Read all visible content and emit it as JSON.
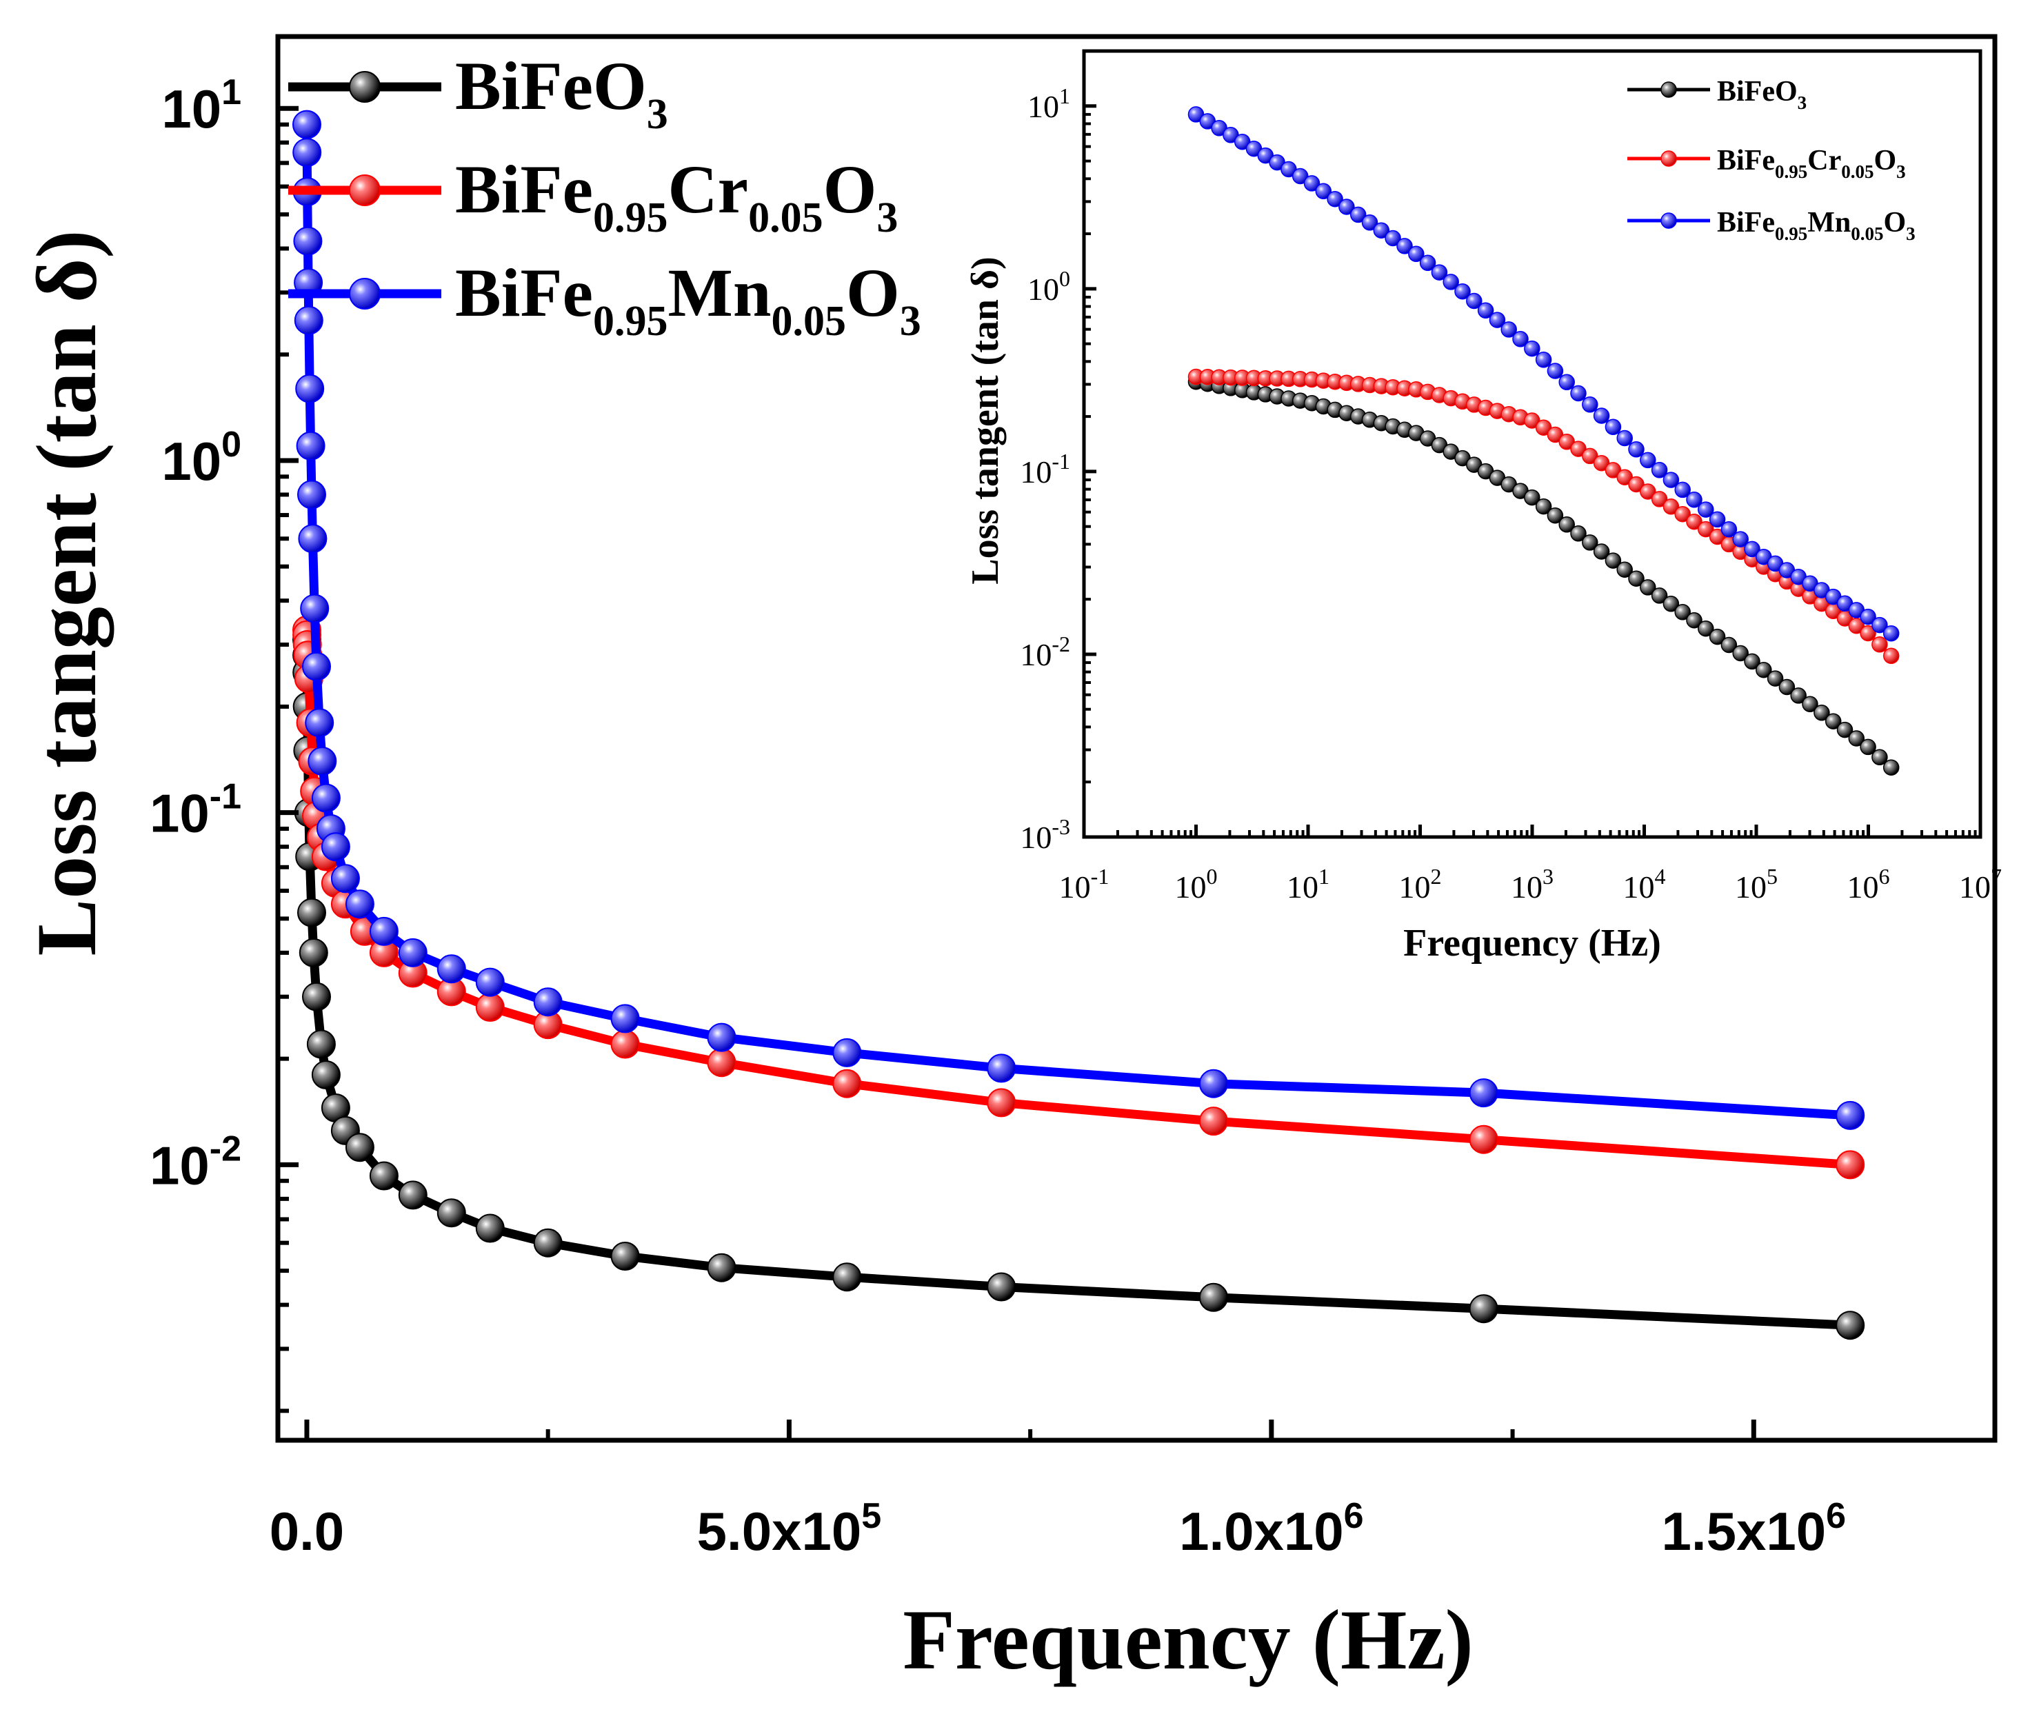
{
  "colors": {
    "BiFeO3": "#000000",
    "BiFe095Cr005O3": "#ff0000",
    "BiFe095Mn005O3": "#0000ff",
    "axis": "#000000",
    "background": "#ffffff"
  },
  "chart_data": [
    {
      "id": "main",
      "type": "line",
      "title": "",
      "xlabel": "Frequency (Hz)",
      "ylabel": "Loss tangent (tan δ)",
      "xscale": "linear",
      "yscale": "log",
      "xlim": [
        -30000,
        1750000
      ],
      "ylim": [
        0.00165,
        16
      ],
      "xticks": [
        {
          "value": 0,
          "label": "0.0"
        },
        {
          "value": 500000,
          "mant": "5.0x10",
          "exp": "5"
        },
        {
          "value": 1000000,
          "mant": "1.0x10",
          "exp": "6"
        },
        {
          "value": 1500000,
          "mant": "1.5x10",
          "exp": "6"
        }
      ],
      "yticks": [
        {
          "value": 0.01,
          "base": "10",
          "exp": "-2"
        },
        {
          "value": 0.1,
          "base": "10",
          "exp": "-1"
        },
        {
          "value": 1,
          "base": "10",
          "exp": "0"
        },
        {
          "value": 10,
          "base": "10",
          "exp": "1"
        }
      ],
      "legend_position": "top-left",
      "grid": false,
      "series": [
        {
          "key": "BiFeO3",
          "name": "BiFeO3",
          "legend": {
            "parts": [
              {
                "t": "BiFeO"
              },
              {
                "t": "3",
                "sub": true
              }
            ]
          },
          "x": [
            1,
            100,
            200,
            500,
            1000,
            2000,
            3000,
            5000,
            7000,
            10000,
            15000,
            20000,
            30000,
            40000,
            55000,
            80000,
            110000,
            150000,
            190000,
            250000,
            330000,
            430000,
            560000,
            720000,
            940000,
            1220000,
            1600000
          ],
          "y": [
            0.31,
            0.28,
            0.25,
            0.2,
            0.15,
            0.1,
            0.075,
            0.052,
            0.04,
            0.03,
            0.022,
            0.018,
            0.0145,
            0.0125,
            0.0112,
            0.0093,
            0.0082,
            0.0073,
            0.0066,
            0.006,
            0.0055,
            0.0051,
            0.0048,
            0.0045,
            0.0042,
            0.0039,
            0.0035
          ]
        },
        {
          "key": "BiFe095Cr005O3",
          "name": "BiFe0.95Cr0.05O3",
          "legend": {
            "parts": [
              {
                "t": "BiFe"
              },
              {
                "t": "0.95",
                "sub": true
              },
              {
                "t": "Cr"
              },
              {
                "t": "0.05",
                "sub": true
              },
              {
                "t": "O"
              },
              {
                "t": "3",
                "sub": true
              }
            ]
          },
          "x": [
            1,
            100,
            500,
            1000,
            2000,
            4000,
            6000,
            8000,
            10000,
            15000,
            20000,
            30000,
            40000,
            60000,
            80000,
            110000,
            150000,
            190000,
            250000,
            330000,
            430000,
            560000,
            720000,
            940000,
            1220000,
            1600000
          ],
          "y": [
            0.33,
            0.32,
            0.3,
            0.28,
            0.24,
            0.18,
            0.14,
            0.115,
            0.098,
            0.085,
            0.075,
            0.063,
            0.055,
            0.046,
            0.04,
            0.035,
            0.031,
            0.028,
            0.025,
            0.022,
            0.0195,
            0.017,
            0.015,
            0.0133,
            0.0118,
            0.01
          ]
        },
        {
          "key": "BiFe095Mn005O3",
          "name": "BiFe0.95Mn0.05O3",
          "legend": {
            "parts": [
              {
                "t": "BiFe"
              },
              {
                "t": "0.95",
                "sub": true
              },
              {
                "t": "Mn"
              },
              {
                "t": "0.05",
                "sub": true
              },
              {
                "t": "O"
              },
              {
                "t": "3",
                "sub": true
              }
            ]
          },
          "x": [
            1,
            200,
            500,
            1000,
            1500,
            2000,
            3000,
            4000,
            5000,
            6000,
            8000,
            10000,
            13000,
            16000,
            20000,
            25000,
            30000,
            40000,
            55000,
            80000,
            110000,
            150000,
            190000,
            250000,
            330000,
            430000,
            560000,
            720000,
            940000,
            1220000,
            1600000
          ],
          "y": [
            9,
            7.5,
            5.8,
            4.2,
            3.2,
            2.5,
            1.6,
            1.1,
            0.8,
            0.6,
            0.38,
            0.26,
            0.18,
            0.14,
            0.11,
            0.09,
            0.08,
            0.065,
            0.055,
            0.046,
            0.04,
            0.036,
            0.033,
            0.029,
            0.026,
            0.023,
            0.0208,
            0.0188,
            0.017,
            0.016,
            0.0138
          ]
        }
      ]
    },
    {
      "id": "inset",
      "type": "line",
      "title": "",
      "xlabel": "Frequency (Hz)",
      "ylabel": "Loss tangent (tan δ)",
      "xscale": "log",
      "yscale": "log",
      "xlim": [
        0.1,
        10000000
      ],
      "ylim": [
        0.001,
        20
      ],
      "xticks": [
        {
          "value": 0.1,
          "base": "10",
          "exp": "-1"
        },
        {
          "value": 1,
          "base": "10",
          "exp": "0"
        },
        {
          "value": 10,
          "base": "10",
          "exp": "1"
        },
        {
          "value": 100,
          "base": "10",
          "exp": "2"
        },
        {
          "value": 1000,
          "base": "10",
          "exp": "3"
        },
        {
          "value": 10000,
          "base": "10",
          "exp": "4"
        },
        {
          "value": 100000,
          "base": "10",
          "exp": "5"
        },
        {
          "value": 1000000,
          "base": "10",
          "exp": "6"
        },
        {
          "value": 10000000,
          "base": "10",
          "exp": "7"
        }
      ],
      "yticks": [
        {
          "value": 0.001,
          "base": "10",
          "exp": "-3"
        },
        {
          "value": 0.01,
          "base": "10",
          "exp": "-2"
        },
        {
          "value": 0.1,
          "base": "10",
          "exp": "-1"
        },
        {
          "value": 1,
          "base": "10",
          "exp": "0"
        },
        {
          "value": 10,
          "base": "10",
          "exp": "1"
        }
      ],
      "legend_position": "top-right",
      "grid": false,
      "points_per_series": 61,
      "x_range": [
        1,
        1600000
      ],
      "series": [
        {
          "key": "BiFeO3",
          "name": "BiFeO3",
          "legend": {
            "parts": [
              {
                "t": "BiFeO"
              },
              {
                "t": "3",
                "sub": true
              }
            ]
          },
          "curve": [
            [
              1,
              0.31
            ],
            [
              10,
              0.24
            ],
            [
              100,
              0.16
            ],
            [
              1000,
              0.072
            ],
            [
              10000,
              0.024
            ],
            [
              100000,
              0.0088
            ],
            [
              1000000,
              0.0031
            ],
            [
              1600000,
              0.0024
            ]
          ]
        },
        {
          "key": "BiFe095Cr005O3",
          "name": "BiFe0.95Cr0.05O3",
          "legend": {
            "parts": [
              {
                "t": "BiFe"
              },
              {
                "t": "0.95",
                "sub": true
              },
              {
                "t": "Cr"
              },
              {
                "t": "0.05",
                "sub": true
              },
              {
                "t": "O"
              },
              {
                "t": "3",
                "sub": true
              }
            ]
          },
          "curve": [
            [
              1,
              0.33
            ],
            [
              10,
              0.32
            ],
            [
              100,
              0.28
            ],
            [
              1000,
              0.19
            ],
            [
              10000,
              0.08
            ],
            [
              100000,
              0.032
            ],
            [
              1000000,
              0.013
            ],
            [
              1600000,
              0.0098
            ]
          ]
        },
        {
          "key": "BiFe095Mn005O3",
          "name": "BiFe0.95Mn0.05O3",
          "legend": {
            "parts": [
              {
                "t": "BiFe"
              },
              {
                "t": "0.95",
                "sub": true
              },
              {
                "t": "Mn"
              },
              {
                "t": "0.05",
                "sub": true
              },
              {
                "t": "O"
              },
              {
                "t": "3",
                "sub": true
              }
            ]
          },
          "curve": [
            [
              1,
              9
            ],
            [
              10,
              3.9
            ],
            [
              100,
              1.5
            ],
            [
              1000,
              0.47
            ],
            [
              10000,
              0.12
            ],
            [
              100000,
              0.036
            ],
            [
              1000000,
              0.016
            ],
            [
              1600000,
              0.013
            ]
          ]
        }
      ]
    }
  ]
}
